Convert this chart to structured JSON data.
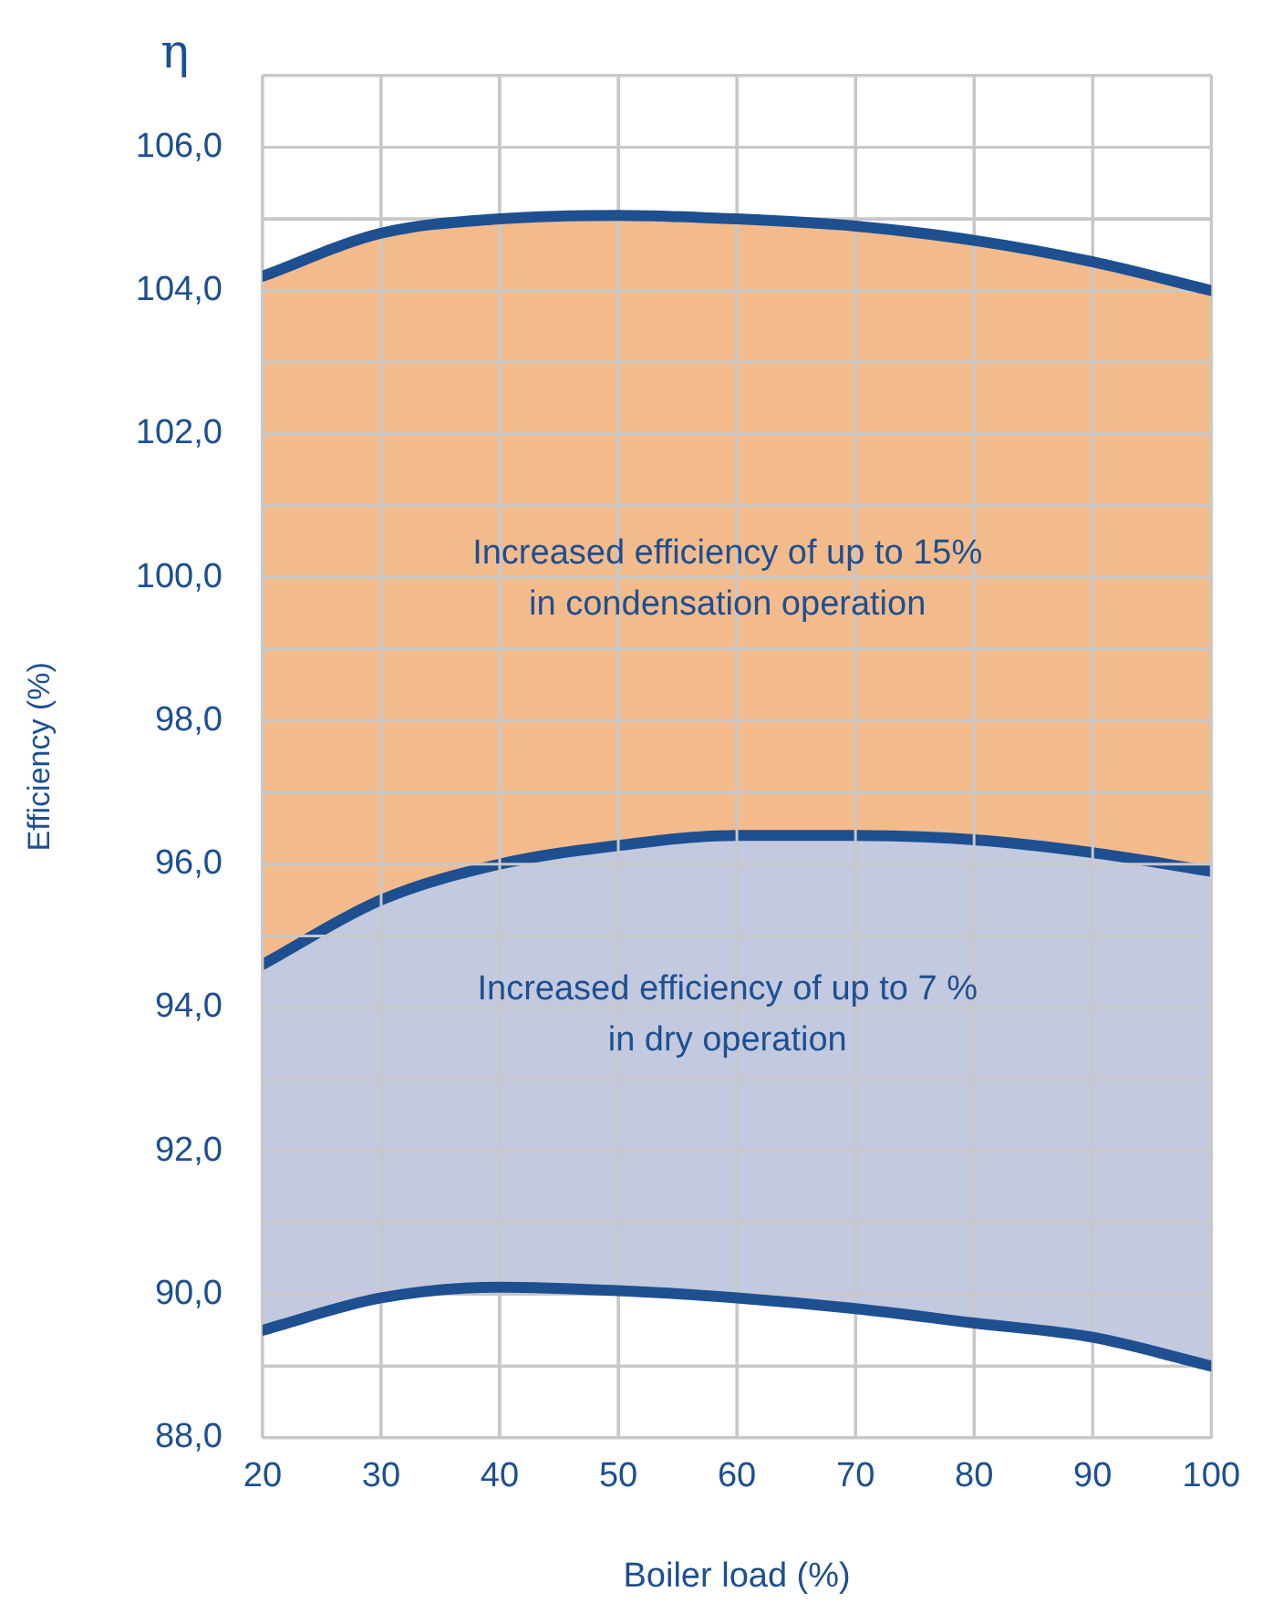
{
  "chart_data": {
    "type": "line",
    "xlabel": "Boiler load (%)",
    "ylabel": "Efficiency (%)",
    "x": [
      20,
      30,
      40,
      50,
      60,
      70,
      80,
      90,
      100
    ],
    "series": [
      {
        "type": "area",
        "color": "#f3bb8b",
        "values": [
          104.2,
          104.8,
          105.0,
          105.05,
          105.0,
          104.9,
          104.7,
          104.4,
          104.0
        ]
      },
      {
        "type": "area",
        "color": "#c3c9de",
        "values": [
          94.6,
          95.5,
          96.0,
          96.26,
          96.4,
          96.4,
          96.34,
          96.16,
          95.9
        ]
      },
      {
        "type": "line",
        "color": "#1d4f91",
        "values": [
          89.5,
          89.95,
          90.1,
          90.05,
          89.95,
          89.8,
          89.6,
          89.4,
          89.0
        ]
      },
      {
        "type": "line",
        "color": "#1d4f91",
        "values": [
          104.2,
          104.8,
          105.0,
          105.05,
          105.0,
          104.9,
          104.7,
          104.4,
          104.0
        ]
      }
    ],
    "xlim": [
      20,
      100
    ],
    "xticks": [
      20,
      30,
      40,
      50,
      60,
      70,
      80,
      90,
      100
    ],
    "ylim": [
      88,
      107
    ],
    "yticks": [
      {
        "value": 88,
        "label": "88,0"
      },
      {
        "value": 89,
        "label": null
      },
      {
        "value": 90,
        "label": "90,0"
      },
      {
        "value": 91,
        "label": null
      },
      {
        "value": 92,
        "label": "92,0"
      },
      {
        "value": 93,
        "label": null
      },
      {
        "value": 94,
        "label": "94,0"
      },
      {
        "value": 95,
        "label": null
      },
      {
        "value": 96,
        "label": "96,0"
      },
      {
        "value": 97,
        "label": null
      },
      {
        "value": 98,
        "label": "98,0"
      },
      {
        "value": 99,
        "label": null
      },
      {
        "value": 100,
        "label": "100,0"
      },
      {
        "value": 101,
        "label": null
      },
      {
        "value": 102,
        "label": "102,0"
      },
      {
        "value": 103,
        "label": null
      },
      {
        "value": 104,
        "label": "104,0"
      },
      {
        "value": 105,
        "label": null
      },
      {
        "value": 106,
        "label": "106,0"
      },
      {
        "value": 107,
        "label": null
      }
    ],
    "grid": true,
    "legend": false,
    "annotations": [
      "η",
      "Increased efficiency of up to 15%\nin condensation operation",
      "Increased efficiency of up to 7 %\nin dry operation"
    ]
  }
}
